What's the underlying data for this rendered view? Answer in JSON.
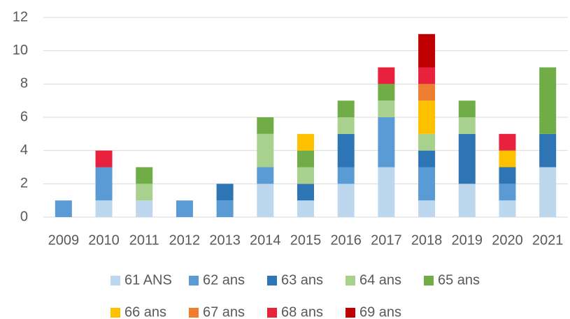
{
  "chart_data": {
    "type": "stacked-bar",
    "categories": [
      "2009",
      "2010",
      "2011",
      "2012",
      "2013",
      "2014",
      "2015",
      "2016",
      "2017",
      "2018",
      "2019",
      "2020",
      "2021"
    ],
    "series": [
      {
        "name": "61 ANS",
        "color": "#bdd7ee",
        "values": [
          0,
          1,
          1,
          0,
          0,
          2,
          1,
          2,
          3,
          1,
          2,
          1,
          3
        ]
      },
      {
        "name": "62 ans",
        "color": "#5b9bd5",
        "values": [
          1,
          2,
          0,
          1,
          1,
          1,
          0,
          1,
          3,
          2,
          0,
          1,
          0
        ]
      },
      {
        "name": "63 ans",
        "color": "#2e75b6",
        "values": [
          0,
          0,
          0,
          0,
          1,
          0,
          1,
          2,
          0,
          1,
          3,
          1,
          2
        ]
      },
      {
        "name": "64 ans",
        "color": "#a9d18e",
        "values": [
          0,
          0,
          1,
          0,
          0,
          2,
          1,
          1,
          1,
          1,
          1,
          0,
          0
        ]
      },
      {
        "name": "65 ans",
        "color": "#70ad47",
        "values": [
          0,
          0,
          1,
          0,
          0,
          1,
          1,
          1,
          1,
          0,
          1,
          0,
          4
        ]
      },
      {
        "name": "66 ans",
        "color": "#ffc000",
        "values": [
          0,
          0,
          0,
          0,
          0,
          0,
          1,
          0,
          0,
          2,
          0,
          1,
          0
        ]
      },
      {
        "name": "67 ans",
        "color": "#ed7d31",
        "values": [
          0,
          0,
          0,
          0,
          0,
          0,
          0,
          0,
          0,
          1,
          0,
          0,
          0
        ]
      },
      {
        "name": "68 ans",
        "color": "#e8213f",
        "values": [
          0,
          1,
          0,
          0,
          0,
          0,
          0,
          0,
          1,
          1,
          0,
          1,
          0
        ]
      },
      {
        "name": "69 ans",
        "color": "#c00000",
        "values": [
          0,
          0,
          0,
          0,
          0,
          0,
          0,
          0,
          0,
          2,
          0,
          0,
          0
        ]
      }
    ],
    "ylim": [
      0,
      12
    ],
    "yticks": [
      0,
      2,
      4,
      6,
      8,
      10,
      12
    ],
    "grid": true,
    "legend": "bottom"
  }
}
